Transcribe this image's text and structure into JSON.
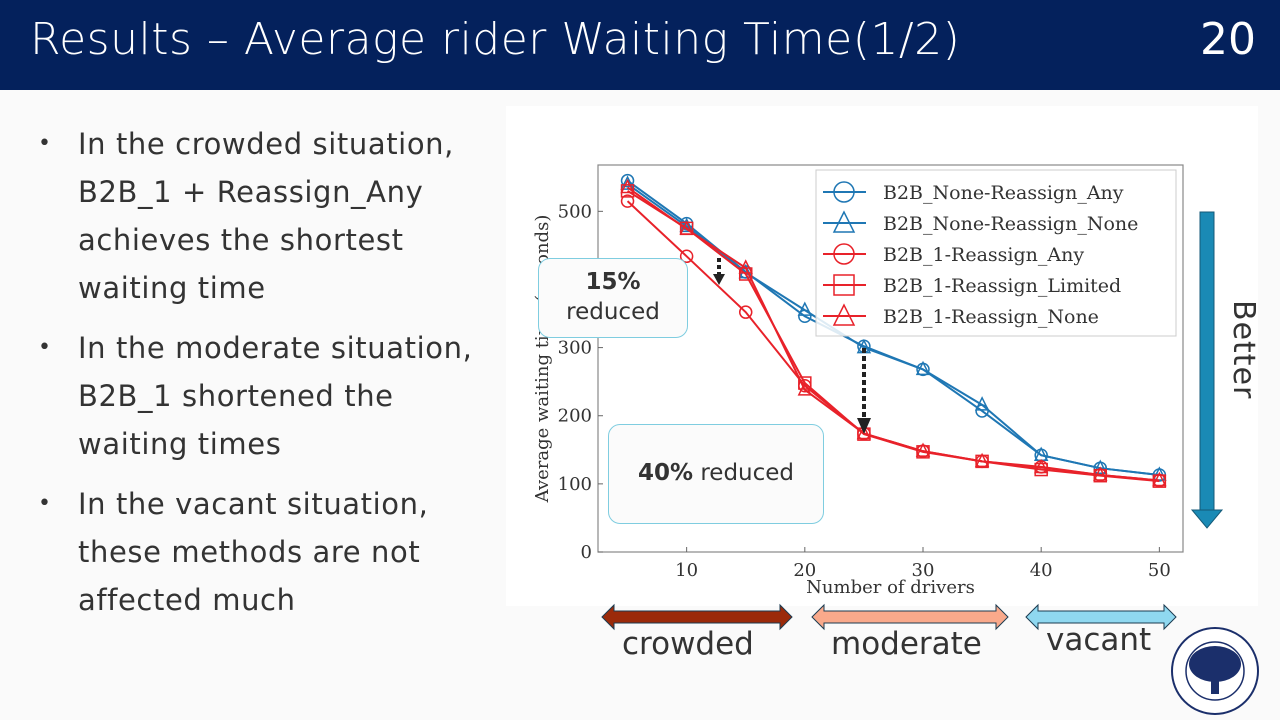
{
  "header": {
    "title": "Results – Average rider Waiting Time(1/2)",
    "page": "20"
  },
  "bullets": [
    "In the crowded situation, B2B_1 + Reassign_Any achieves the shortest waiting time",
    "In the moderate situation, B2B_1 shortened the waiting times",
    "In the vacant situation, these methods are not affected much"
  ],
  "callouts": {
    "c1_pct": "15%",
    "c1_text": "reduced",
    "c2_pct": "40%",
    "c2_text": " reduced"
  },
  "better_label": "Better",
  "ranges": [
    {
      "label": "crowded",
      "color": "#9b2a0a"
    },
    {
      "label": "moderate",
      "color": "#f9a98b"
    },
    {
      "label": "vacant",
      "color": "#8fd8f0"
    }
  ],
  "logo_text": "KYOTO UNIVERSITY FOUNDED 1897",
  "colors": {
    "blue": "#1f77b4",
    "red": "#e8222a",
    "header": "#04215c",
    "better_arrow": "#1a8ab5"
  },
  "chart_data": {
    "type": "line",
    "title": "",
    "xlabel": "Number of drivers",
    "ylabel": "Average waiting time (seconds)",
    "xlim": [
      2.5,
      52
    ],
    "ylim": [
      0,
      568
    ],
    "xticks": [
      10,
      20,
      30,
      40,
      50
    ],
    "yticks": [
      0,
      100,
      200,
      300,
      400,
      500
    ],
    "legend": "top-right",
    "x": [
      5,
      10,
      15,
      20,
      25,
      30,
      35,
      40,
      45,
      50
    ],
    "series": [
      {
        "name": "B2B_None-Reassign_Any",
        "color": "#1f77b4",
        "marker": "circle",
        "values": [
          545,
          482,
          411,
          346,
          302,
          268,
          207,
          142,
          123,
          113
        ]
      },
      {
        "name": "B2B_None-Reassign_None",
        "color": "#1f77b4",
        "marker": "triangle",
        "values": [
          540,
          478,
          410,
          355,
          300,
          268,
          216,
          142,
          123,
          113
        ]
      },
      {
        "name": "B2B_1-Reassign_Any",
        "color": "#e8222a",
        "marker": "circle",
        "values": [
          515,
          434,
          352,
          244,
          174,
          148,
          133,
          125,
          113,
          105
        ]
      },
      {
        "name": "B2B_1-Reassign_Limited",
        "color": "#e8222a",
        "marker": "square",
        "values": [
          530,
          475,
          408,
          248,
          173,
          147,
          133,
          121,
          112,
          104
        ]
      },
      {
        "name": "B2B_1-Reassign_None",
        "color": "#e8222a",
        "marker": "triangle",
        "values": [
          535,
          474,
          417,
          238,
          174,
          148,
          133,
          124,
          113,
          105
        ]
      }
    ]
  }
}
